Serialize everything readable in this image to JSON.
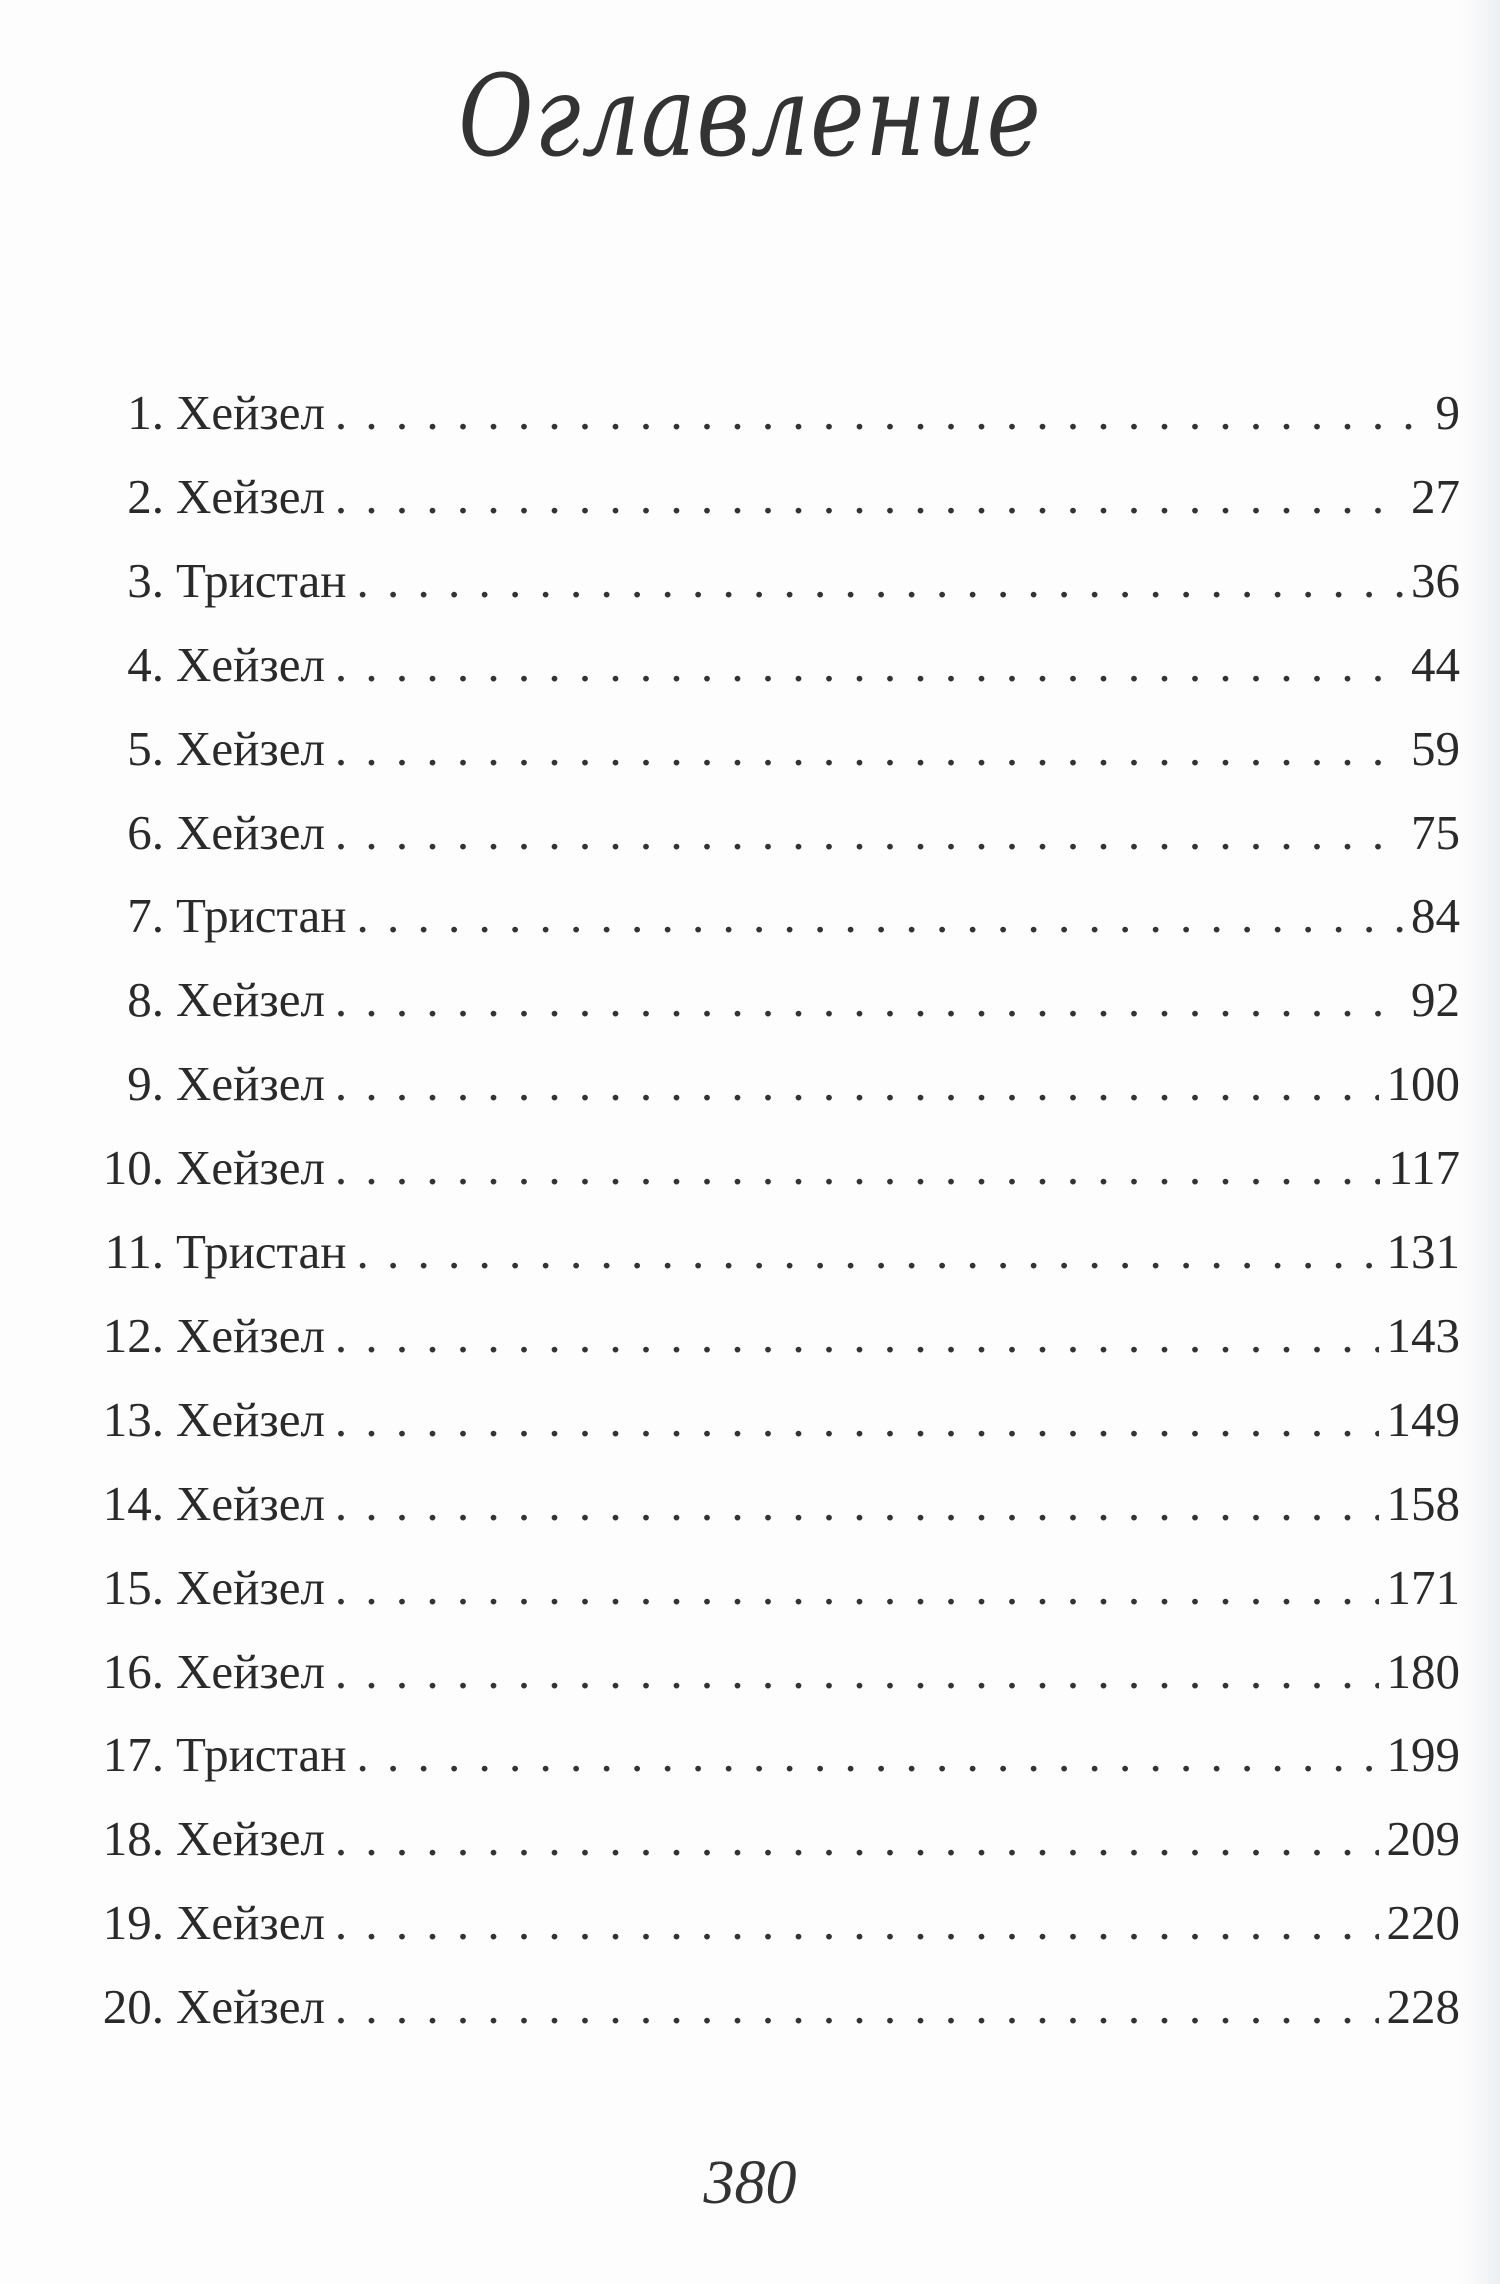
{
  "title": "Оглавление",
  "entries": [
    {
      "num": "1.",
      "name": "Хейзел",
      "page": "9"
    },
    {
      "num": "2.",
      "name": "Хейзел",
      "page": "27"
    },
    {
      "num": "3.",
      "name": "Тристан",
      "page": "36"
    },
    {
      "num": "4.",
      "name": "Хейзел",
      "page": "44"
    },
    {
      "num": "5.",
      "name": "Хейзел",
      "page": "59"
    },
    {
      "num": "6.",
      "name": "Хейзел",
      "page": "75"
    },
    {
      "num": "7.",
      "name": "Тристан",
      "page": "84"
    },
    {
      "num": "8.",
      "name": "Хейзел",
      "page": "92"
    },
    {
      "num": "9.",
      "name": "Хейзел",
      "page": "100"
    },
    {
      "num": "10.",
      "name": "Хейзел",
      "page": "117"
    },
    {
      "num": "11.",
      "name": "Тристан",
      "page": "131"
    },
    {
      "num": "12.",
      "name": "Хейзел",
      "page": "143"
    },
    {
      "num": "13.",
      "name": "Хейзел",
      "page": "149"
    },
    {
      "num": "14.",
      "name": "Хейзел",
      "page": "158"
    },
    {
      "num": "15.",
      "name": "Хейзел",
      "page": "171"
    },
    {
      "num": "16.",
      "name": "Хейзел",
      "page": "180"
    },
    {
      "num": "17.",
      "name": "Тристан",
      "page": "199"
    },
    {
      "num": "18.",
      "name": "Хейзел",
      "page": "209"
    },
    {
      "num": "19.",
      "name": "Хейзел",
      "page": "220"
    },
    {
      "num": "20.",
      "name": "Хейзел",
      "page": "228"
    }
  ],
  "folio": "380"
}
